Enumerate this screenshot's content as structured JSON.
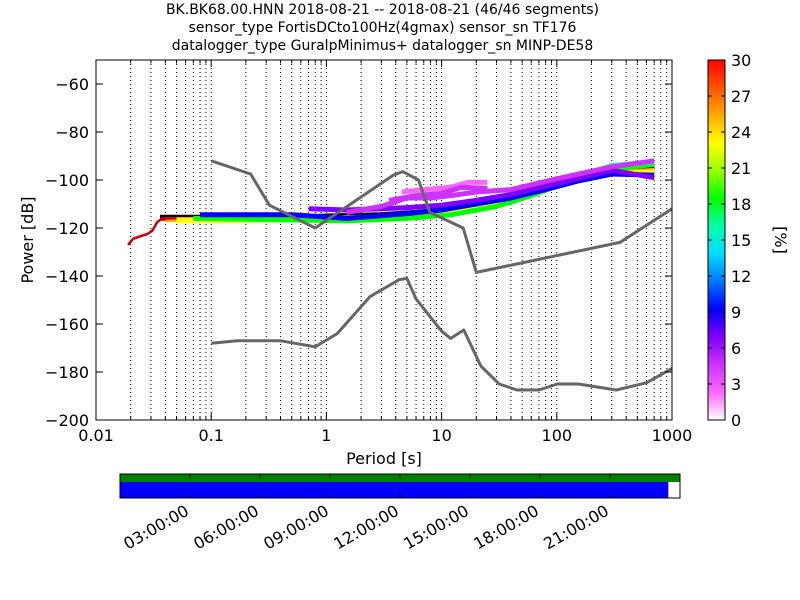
{
  "chart_data": {
    "type": "heatmap",
    "title_lines": [
      "BK.BK68.00.HNN   2018-08-21 -- 2018-08-21  (46/46 segments)",
      "sensor_type FortisDCto100Hz(4gmax) sensor_sn TF176",
      "datalogger_type GuralpMinimus+ datalogger_sn MINP-DE58"
    ],
    "xlabel": "Period [s]",
    "ylabel": "Power [dB]",
    "x_scale": "log",
    "xlim": [
      0.01,
      1000
    ],
    "ylim": [
      -200,
      -50
    ],
    "x_ticks": [
      {
        "value": 0.01,
        "label": "0.01"
      },
      {
        "value": 0.1,
        "label": "0.1"
      },
      {
        "value": 1,
        "label": "1"
      },
      {
        "value": 10,
        "label": "10"
      },
      {
        "value": 100,
        "label": "100"
      },
      {
        "value": 1000,
        "label": "1000"
      }
    ],
    "y_ticks": [
      {
        "value": -60,
        "label": "−60"
      },
      {
        "value": -80,
        "label": "−80"
      },
      {
        "value": -100,
        "label": "−100"
      },
      {
        "value": -120,
        "label": "−120"
      },
      {
        "value": -140,
        "label": "−140"
      },
      {
        "value": -160,
        "label": "−160"
      },
      {
        "value": -180,
        "label": "−180"
      },
      {
        "value": -200,
        "label": "−200"
      }
    ],
    "grid": "dotted vertical period grid",
    "colorbar": {
      "label": "[%]",
      "range": [
        0,
        30
      ],
      "ticks": [
        {
          "value": 0,
          "label": "0"
        },
        {
          "value": 3,
          "label": "3"
        },
        {
          "value": 6,
          "label": "6"
        },
        {
          "value": 9,
          "label": "9"
        },
        {
          "value": 12,
          "label": "12"
        },
        {
          "value": 15,
          "label": "15"
        },
        {
          "value": 18,
          "label": "18"
        },
        {
          "value": 21,
          "label": "21"
        },
        {
          "value": 24,
          "label": "24"
        },
        {
          "value": 27,
          "label": "27"
        },
        {
          "value": 30,
          "label": "30"
        }
      ],
      "colors": [
        "#ffffff",
        "#ff66ff",
        "#cc33ff",
        "#7f00ff",
        "#0000ff",
        "#0077ff",
        "#00ddff",
        "#00ffaa",
        "#00ff00",
        "#99ff00",
        "#ffff00",
        "#ffaa00",
        "#ff5500",
        "#ff0000"
      ]
    },
    "noise_models": [
      {
        "points": [
          [
            0.1,
            -92
          ],
          [
            0.22,
            -97.5
          ],
          [
            0.32,
            -110.5
          ],
          [
            0.8,
            -120
          ],
          [
            3.8,
            -98
          ],
          [
            4.6,
            -96.5
          ],
          [
            6.3,
            -100
          ],
          [
            7.9,
            -113.5
          ],
          [
            15.4,
            -120
          ],
          [
            20,
            -138.5
          ],
          [
            354,
            -126
          ],
          [
            1000,
            -112
          ]
        ]
      },
      {
        "points": [
          [
            0.1,
            -168
          ],
          [
            0.17,
            -167
          ],
          [
            0.4,
            -167
          ],
          [
            0.8,
            -169.5
          ],
          [
            1.24,
            -164
          ],
          [
            2.4,
            -148.5
          ],
          [
            4.3,
            -141.5
          ],
          [
            5.0,
            -141
          ],
          [
            6.0,
            -149.5
          ],
          [
            10,
            -163
          ],
          [
            12,
            -166
          ],
          [
            15.6,
            -162.5
          ],
          [
            21.9,
            -177.5
          ],
          [
            31.6,
            -185
          ],
          [
            45,
            -187.5
          ],
          [
            70,
            -187.5
          ],
          [
            101,
            -185
          ],
          [
            154,
            -185
          ],
          [
            328,
            -187.5
          ],
          [
            600,
            -184.5
          ],
          [
            1000,
            -178.5
          ]
        ]
      }
    ],
    "psd_bands": [
      {
        "color": "#ff0000",
        "points": [
          [
            0.036,
            -116
          ],
          [
            0.5,
            -116
          ],
          [
            1,
            -115.5
          ],
          [
            3,
            -115
          ],
          [
            6,
            -114
          ],
          [
            10,
            -113
          ],
          [
            20,
            -110
          ],
          [
            40,
            -107
          ],
          [
            80,
            -102.5
          ],
          [
            150,
            -99
          ],
          [
            300,
            -96
          ],
          [
            700,
            -95
          ]
        ]
      },
      {
        "color": "#000000",
        "points": [
          [
            0.036,
            -115.5
          ],
          [
            0.5,
            -115.5
          ],
          [
            1,
            -115
          ],
          [
            3,
            -114.5
          ],
          [
            6,
            -113.5
          ],
          [
            10,
            -112.5
          ],
          [
            20,
            -109.5
          ],
          [
            40,
            -106
          ],
          [
            80,
            -101.5
          ],
          [
            150,
            -98
          ],
          [
            300,
            -95
          ],
          [
            700,
            -94
          ]
        ]
      },
      {
        "color": "#ffaa00",
        "points": [
          [
            0.04,
            -116.5
          ],
          [
            1,
            -116
          ],
          [
            4,
            -115
          ],
          [
            10,
            -113.5
          ],
          [
            25,
            -110
          ],
          [
            60,
            -105
          ],
          [
            120,
            -100.5
          ],
          [
            300,
            -97
          ],
          [
            700,
            -96
          ]
        ]
      },
      {
        "color": "#ffff00",
        "points": [
          [
            0.05,
            -117
          ],
          [
            1,
            -116.5
          ],
          [
            5,
            -115.5
          ],
          [
            12,
            -113.5
          ],
          [
            30,
            -110
          ],
          [
            80,
            -103
          ],
          [
            200,
            -98
          ],
          [
            700,
            -96.5
          ]
        ]
      },
      {
        "color": "#00ff00",
        "points": [
          [
            0.07,
            -116
          ],
          [
            1.5,
            -117
          ],
          [
            5,
            -116
          ],
          [
            12,
            -114.5
          ],
          [
            30,
            -111
          ],
          [
            60,
            -106.5
          ],
          [
            120,
            -101
          ],
          [
            300,
            -95.5
          ],
          [
            700,
            -93.5
          ]
        ]
      },
      {
        "color": "#00ffaa",
        "points": [
          [
            150,
            -99
          ],
          [
            300,
            -94
          ],
          [
            700,
            -92.5
          ]
        ]
      },
      {
        "color": "#0000ff",
        "points": [
          [
            0.08,
            -114.5
          ],
          [
            0.5,
            -114.5
          ],
          [
            1.5,
            -116
          ],
          [
            5,
            -114
          ],
          [
            10,
            -112.5
          ],
          [
            20,
            -110
          ],
          [
            40,
            -107.5
          ],
          [
            80,
            -104
          ],
          [
            150,
            -100.5
          ],
          [
            300,
            -97.5
          ],
          [
            700,
            -98
          ]
        ]
      },
      {
        "color": "#7f00ff",
        "points": [
          [
            0.7,
            -112
          ],
          [
            1.5,
            -112.5
          ],
          [
            3,
            -112
          ],
          [
            5,
            -111.5
          ],
          [
            10,
            -110.5
          ],
          [
            20,
            -108.5
          ],
          [
            40,
            -106
          ],
          [
            100,
            -101.5
          ],
          [
            300,
            -96
          ],
          [
            700,
            -99
          ]
        ]
      },
      {
        "color": "#cc33ff",
        "points": [
          [
            1.5,
            -113.5
          ],
          [
            3,
            -111
          ],
          [
            5,
            -107.5
          ],
          [
            8,
            -107.5
          ],
          [
            12,
            -106.5
          ],
          [
            20,
            -105
          ],
          [
            40,
            -104
          ],
          [
            100,
            -99.5
          ],
          [
            300,
            -94.5
          ],
          [
            700,
            -92
          ]
        ]
      },
      {
        "color": "#ff66ff",
        "points": [
          [
            4.5,
            -105
          ],
          [
            7,
            -104
          ],
          [
            12,
            -103
          ],
          [
            17,
            -101
          ],
          [
            25,
            -101
          ]
        ]
      },
      {
        "color": "#cc33ff",
        "points": [
          [
            3.5,
            -108.5
          ],
          [
            6,
            -106.5
          ],
          [
            10,
            -105.5
          ],
          [
            15,
            -103
          ],
          [
            25,
            -103.5
          ]
        ]
      }
    ],
    "psd_low_end": {
      "color": "#cc0000",
      "points": [
        [
          0.019,
          -127
        ],
        [
          0.021,
          -124.5
        ],
        [
          0.024,
          -123.5
        ],
        [
          0.028,
          -122.5
        ],
        [
          0.031,
          -121
        ],
        [
          0.034,
          -117.5
        ],
        [
          0.038,
          -116
        ],
        [
          0.05,
          -116
        ]
      ]
    },
    "timeline": {
      "tick_labels": [
        "03:00:00",
        "06:00:00",
        "09:00:00",
        "12:00:00",
        "15:00:00",
        "18:00:00",
        "21:00:00"
      ],
      "tick_hours": [
        3,
        6,
        9,
        12,
        15,
        18,
        21
      ],
      "span_hours": 24,
      "data_coverage_hours": [
        0,
        24
      ],
      "psd_coverage_hours": [
        0,
        23.5
      ],
      "data_color": "#008000",
      "psd_color": "#0000ff"
    }
  }
}
